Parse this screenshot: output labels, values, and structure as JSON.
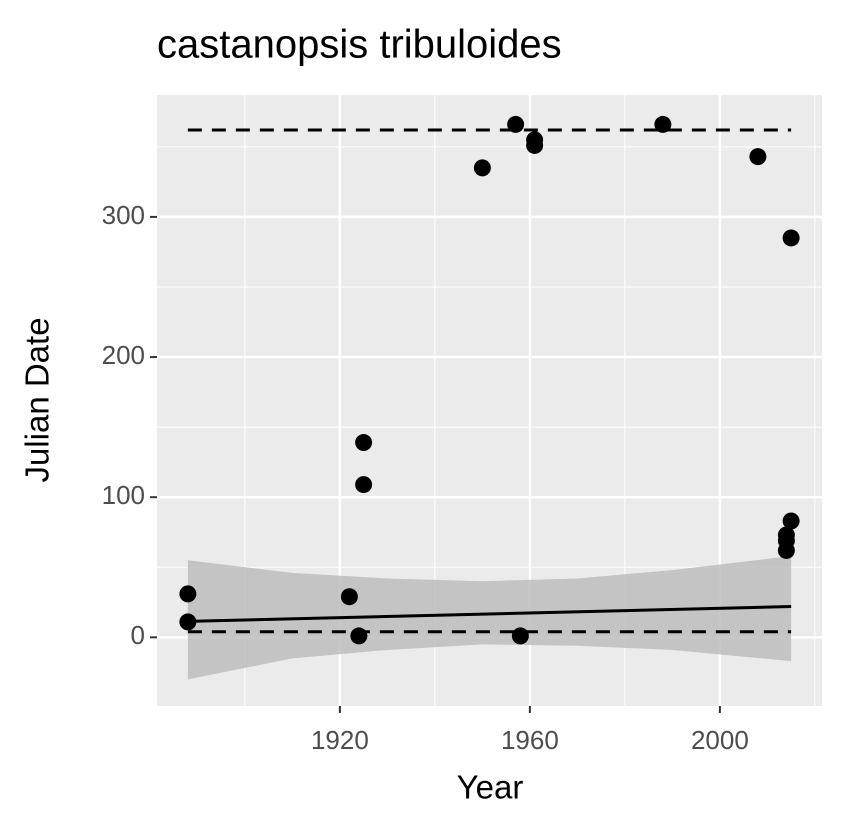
{
  "chart_data": {
    "type": "scatter",
    "title": "castanopsis tribuloides",
    "x_label": "Year",
    "y_label": "Julian Date",
    "xlim": [
      1881.5,
      2021.5
    ],
    "ylim": [
      -49,
      387
    ],
    "xticks": [
      1920,
      1960,
      2000
    ],
    "yticks": [
      0,
      100,
      200,
      300
    ],
    "x_minor_grid": [
      1900,
      1940,
      1980,
      2020
    ],
    "y_minor_grid": [
      50,
      150,
      250,
      350
    ],
    "grid": true,
    "panel_color": "#ebebeb",
    "points": {
      "color": "#000000",
      "x": [
        1888,
        1888,
        1922,
        1924,
        1925,
        1925,
        1950,
        1957,
        1958,
        1961,
        1961,
        1988,
        2008,
        2015,
        2014,
        2014,
        2014,
        2015
      ],
      "values": [
        31,
        11,
        29,
        1,
        139,
        109,
        335,
        366,
        1,
        355,
        351,
        366,
        343,
        285,
        62,
        73,
        69,
        83
      ]
    },
    "fit": {
      "color": "#000000",
      "x": [
        1888,
        2015
      ],
      "values": [
        11.4,
        22
      ]
    },
    "ribbon": {
      "color": "#bdbdbd",
      "x": [
        1888,
        1910,
        1930,
        1950,
        1970,
        1990,
        2015
      ],
      "upper": [
        55,
        46,
        42,
        40,
        42,
        48,
        58
      ],
      "lower": [
        -30,
        -15,
        -9,
        -5,
        -6,
        -9,
        -17
      ]
    },
    "bounds": [
      {
        "color": "#000000",
        "x": [
          1888,
          2015
        ],
        "values": [
          362,
          362
        ]
      },
      {
        "color": "#000000",
        "x": [
          1888,
          2015
        ],
        "values": [
          4,
          4
        ]
      }
    ]
  }
}
